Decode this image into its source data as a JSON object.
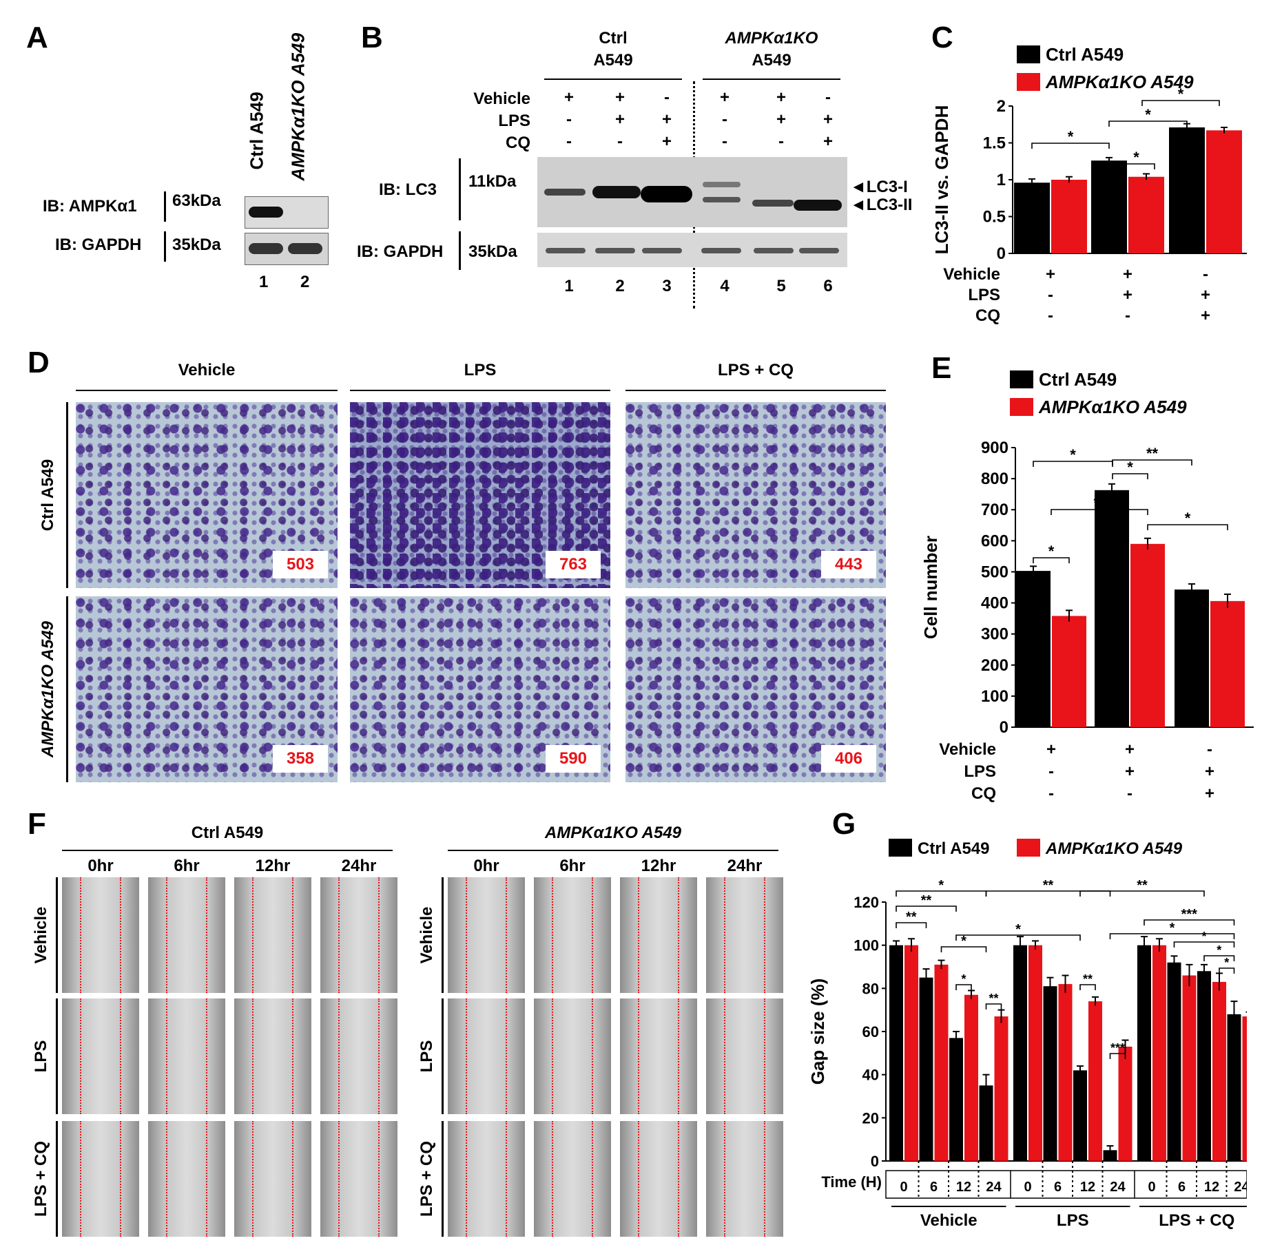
{
  "panel_labels": [
    "A",
    "B",
    "C",
    "D",
    "E",
    "F",
    "G"
  ],
  "panelA": {
    "lanes": [
      "Ctrl A549",
      "AMPKα1KO A549"
    ],
    "rows": [
      {
        "label": "IB: AMPKα1",
        "kda": "63kDa"
      },
      {
        "label": "IB: GAPDH",
        "kda": "35kDa"
      }
    ],
    "lane_numbers": [
      "1",
      "2"
    ]
  },
  "panelB": {
    "groups": [
      {
        "line1": "Ctrl",
        "line2": "A549"
      },
      {
        "line1": "AMPKα1KO",
        "line2": "A549"
      }
    ],
    "treatments": [
      {
        "name": "Vehicle",
        "signs": [
          "+",
          "+",
          "-",
          "+",
          "+",
          "-"
        ]
      },
      {
        "name": "LPS",
        "signs": [
          "-",
          "+",
          "+",
          "-",
          "+",
          "+"
        ]
      },
      {
        "name": "CQ",
        "signs": [
          "-",
          "-",
          "+",
          "-",
          "-",
          "+"
        ]
      }
    ],
    "rows": [
      {
        "label": "IB: LC3",
        "kda": "11kDa"
      },
      {
        "label": "IB: GAPDH",
        "kda": "35kDa"
      }
    ],
    "band_labels": [
      "◄LC3-I",
      "◄LC3-II"
    ],
    "lane_numbers": [
      "1",
      "2",
      "3",
      "4",
      "5",
      "6"
    ]
  },
  "panelC": {
    "chart_data": {
      "type": "bar",
      "ylabel": "LC3-II vs. GAPDH",
      "ylim": [
        0,
        2
      ],
      "yticks": [
        "0",
        "0.5",
        "1",
        "1.5",
        "2"
      ],
      "series": [
        {
          "name": "Ctrl A549",
          "color": "#000000",
          "values": [
            0.96,
            1.26,
            1.71
          ],
          "errors": [
            0.05,
            0.04,
            0.05
          ]
        },
        {
          "name": "AMPKα1KO A549",
          "color": "#e8141a",
          "values": [
            1.0,
            1.04,
            1.67
          ],
          "errors": [
            0.04,
            0.04,
            0.04
          ]
        }
      ],
      "treatments": [
        {
          "name": "Vehicle",
          "signs": [
            "+",
            "+",
            "-"
          ]
        },
        {
          "name": "LPS",
          "signs": [
            "-",
            "+",
            "+"
          ]
        },
        {
          "name": "CQ",
          "signs": [
            "-",
            "-",
            "+"
          ]
        }
      ],
      "significance": [
        "*",
        "*",
        "*",
        "*"
      ]
    }
  },
  "panelD": {
    "columns": [
      "Vehicle",
      "LPS",
      "LPS + CQ"
    ],
    "rows": [
      "Ctrl A549",
      "AMPKα1KO A549"
    ],
    "counts": [
      [
        "503",
        "763",
        "443"
      ],
      [
        "358",
        "590",
        "406"
      ]
    ]
  },
  "panelE": {
    "chart_data": {
      "type": "bar",
      "ylabel": "Cell number",
      "ylim": [
        0,
        900
      ],
      "yticks": [
        "0",
        "100",
        "200",
        "300",
        "400",
        "500",
        "600",
        "700",
        "800",
        "900"
      ],
      "series": [
        {
          "name": "Ctrl A549",
          "color": "#000000",
          "values": [
            503,
            763,
            443
          ],
          "errors": [
            15,
            20,
            18
          ]
        },
        {
          "name": "AMPKα1KO A549",
          "color": "#e8141a",
          "values": [
            358,
            590,
            406
          ],
          "errors": [
            18,
            18,
            22
          ]
        }
      ],
      "treatments": [
        {
          "name": "Vehicle",
          "signs": [
            "+",
            "+",
            "-"
          ]
        },
        {
          "name": "LPS",
          "signs": [
            "-",
            "+",
            "+"
          ]
        },
        {
          "name": "CQ",
          "signs": [
            "-",
            "-",
            "+"
          ]
        }
      ],
      "significance": [
        "*",
        "*",
        "*",
        "**",
        "**",
        "*"
      ]
    }
  },
  "panelF": {
    "groups": [
      "Ctrl A549",
      "AMPKα1KO A549"
    ],
    "times": [
      "0hr",
      "6hr",
      "12hr",
      "24hr"
    ],
    "rows": [
      "Vehicle",
      "LPS",
      "LPS + CQ"
    ]
  },
  "panelG": {
    "chart_data": {
      "type": "bar",
      "ylabel": "Gap size (%)",
      "ylim": [
        0,
        120
      ],
      "yticks": [
        "0",
        "20",
        "40",
        "60",
        "80",
        "100",
        "120"
      ],
      "xlabel": "Time (H)",
      "time_labels": [
        "0",
        "6",
        "12",
        "24",
        "0",
        "6",
        "12",
        "24",
        "0",
        "6",
        "12",
        "24"
      ],
      "groups": [
        "Vehicle",
        "LPS",
        "LPS + CQ"
      ],
      "series": [
        {
          "name": "Ctrl A549",
          "color": "#000000",
          "values": [
            100,
            85,
            57,
            35,
            100,
            81,
            42,
            5,
            100,
            92,
            88,
            68
          ],
          "errors": [
            2,
            4,
            3,
            5,
            4,
            4,
            2,
            2,
            4,
            3,
            3,
            6
          ]
        },
        {
          "name": "AMPKα1KO A549",
          "color": "#e8141a",
          "values": [
            100,
            91,
            77,
            67,
            100,
            82,
            74,
            53,
            100,
            86,
            83,
            67
          ],
          "errors": [
            3,
            2,
            2,
            3,
            2,
            4,
            2,
            3,
            3,
            5,
            4,
            2
          ]
        }
      ],
      "significance": [
        "**",
        "**",
        "*",
        "*",
        "*",
        "**",
        "*",
        "**",
        "**",
        "***",
        "**",
        "*",
        "***",
        "*",
        "*",
        "*"
      ]
    }
  }
}
